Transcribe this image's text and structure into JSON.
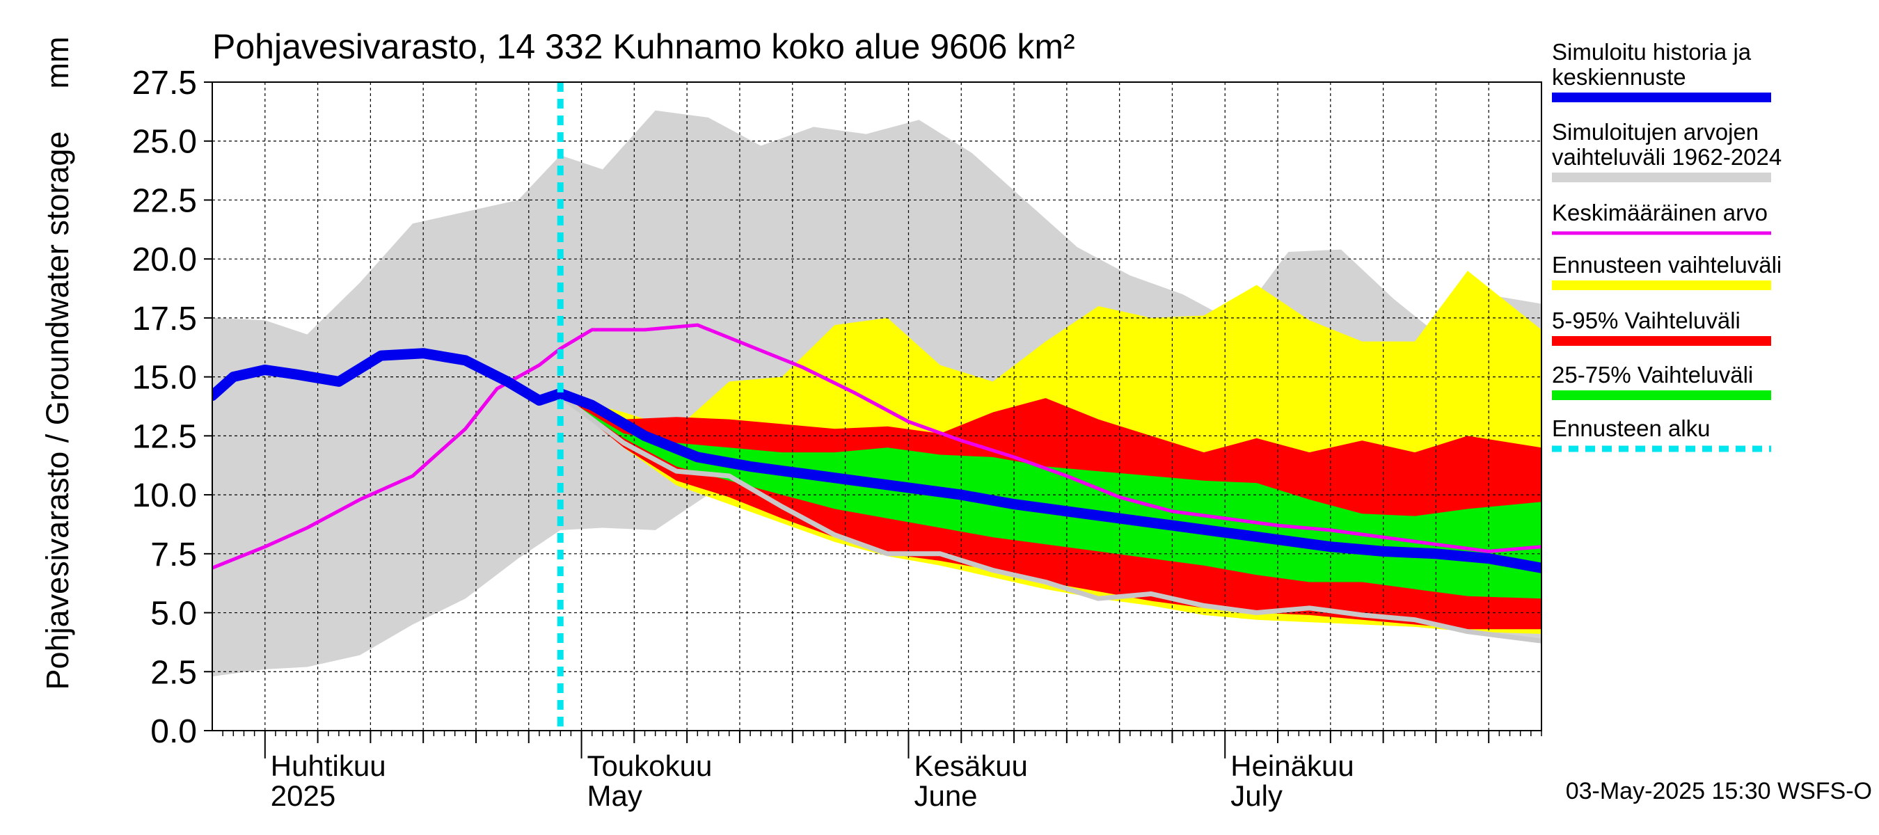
{
  "chart_data": {
    "type": "area",
    "title": "Pohjavesivarasto, 14 332 Kuhnamo koko alue 9606 km²",
    "ylabel": "Pohjavesivarasto / Groundwater storage",
    "yunit": "mm",
    "ylim": [
      0,
      27.5
    ],
    "yticks": [
      "0.0",
      "2.5",
      "5.0",
      "7.5",
      "10.0",
      "12.5",
      "15.0",
      "17.5",
      "20.0",
      "22.5",
      "25.0",
      "27.5"
    ],
    "xlim": [
      "2025-03-27",
      "2025-07-31"
    ],
    "month_labels": [
      {
        "date": "2025-04-01",
        "fi": "Huhtikuu",
        "en": "2025"
      },
      {
        "date": "2025-05-01",
        "fi": "Toukokuu",
        "en": "May"
      },
      {
        "date": "2025-06-01",
        "fi": "Kesäkuu",
        "en": "June"
      },
      {
        "date": "2025-07-01",
        "fi": "Heinäkuu",
        "en": "July"
      }
    ],
    "month_starts": [
      "2025-04-01",
      "2025-05-01",
      "2025-06-01",
      "2025-07-01"
    ],
    "forecast_start": "2025-04-29",
    "footer": "03-May-2025 15:30 WSFS-O",
    "grid": true,
    "legend_position": "right",
    "colors": {
      "history": "#0000ee",
      "sim_range": "#d3d3d3",
      "mean": "#ee00ee",
      "forecast_range": "#ffff00",
      "p5_95": "#ff0000",
      "p25_75": "#00ee00",
      "forecast_start": "#00e5ee",
      "grey_line": "#c8c8c8"
    },
    "series": [
      {
        "key": "sim_range",
        "name": "Simuloitujen arvojen vaihteluväli 1962-2024",
        "dates": [
          "2025-03-27",
          "2025-04-01",
          "2025-04-05",
          "2025-04-10",
          "2025-04-15",
          "2025-04-20",
          "2025-04-25",
          "2025-04-29",
          "2025-05-03",
          "2025-05-08",
          "2025-05-13",
          "2025-05-18",
          "2025-05-23",
          "2025-05-28",
          "2025-06-02",
          "2025-06-07",
          "2025-06-12",
          "2025-06-17",
          "2025-06-22",
          "2025-06-27",
          "2025-07-02",
          "2025-07-07",
          "2025-07-12",
          "2025-07-17",
          "2025-07-22",
          "2025-07-27",
          "2025-07-31"
        ],
        "lower": [
          2.3,
          2.6,
          2.7,
          3.2,
          4.5,
          5.6,
          7.3,
          8.5,
          8.6,
          8.5,
          10.0,
          11.0,
          10.5,
          9.5,
          8.0,
          7.4,
          7.3,
          7.0,
          6.5,
          5.9,
          5.2,
          5.0,
          4.8,
          4.6,
          4.3,
          4.1,
          3.9
        ],
        "upper": [
          17.5,
          17.4,
          16.8,
          19.0,
          21.5,
          22.0,
          22.5,
          24.4,
          23.8,
          26.3,
          26.0,
          24.8,
          25.6,
          25.3,
          25.9,
          24.5,
          22.5,
          20.5,
          19.3,
          18.5,
          17.3,
          20.3,
          20.4,
          18.3,
          16.5,
          18.4,
          18.1
        ]
      },
      {
        "key": "forecast_range",
        "name": "Ennusteen vaihteluväli",
        "dates": [
          "2025-04-29",
          "2025-05-05",
          "2025-05-10",
          "2025-05-15",
          "2025-05-20",
          "2025-05-25",
          "2025-05-30",
          "2025-06-04",
          "2025-06-09",
          "2025-06-14",
          "2025-06-19",
          "2025-06-24",
          "2025-06-29",
          "2025-07-04",
          "2025-07-09",
          "2025-07-14",
          "2025-07-19",
          "2025-07-24",
          "2025-07-31"
        ],
        "lower": [
          14.2,
          12.0,
          10.4,
          9.6,
          8.8,
          8.0,
          7.4,
          7.0,
          6.5,
          6.0,
          5.6,
          5.3,
          4.9,
          4.7,
          4.6,
          4.5,
          4.4,
          4.2,
          4.1
        ],
        "upper": [
          14.2,
          13.5,
          12.8,
          14.8,
          15.0,
          17.2,
          17.5,
          15.5,
          14.8,
          16.5,
          18.0,
          17.5,
          17.6,
          18.9,
          17.4,
          16.5,
          16.5,
          19.5,
          17.0
        ]
      },
      {
        "key": "p5_95",
        "name": "5-95% Vaihteluväli",
        "dates": [
          "2025-04-29",
          "2025-05-05",
          "2025-05-10",
          "2025-05-15",
          "2025-05-20",
          "2025-05-25",
          "2025-05-30",
          "2025-06-04",
          "2025-06-09",
          "2025-06-14",
          "2025-06-19",
          "2025-06-24",
          "2025-06-29",
          "2025-07-04",
          "2025-07-09",
          "2025-07-14",
          "2025-07-19",
          "2025-07-24",
          "2025-07-31"
        ],
        "lower": [
          14.2,
          12.0,
          10.6,
          9.9,
          9.0,
          8.2,
          7.5,
          7.2,
          6.8,
          6.3,
          5.9,
          5.5,
          5.2,
          5.0,
          4.9,
          4.7,
          4.5,
          4.3,
          4.3
        ],
        "upper": [
          14.2,
          13.2,
          13.3,
          13.2,
          13.0,
          12.8,
          12.9,
          12.6,
          13.5,
          14.1,
          13.2,
          12.5,
          11.8,
          12.4,
          11.8,
          12.3,
          11.8,
          12.5,
          12.0
        ]
      },
      {
        "key": "p25_75",
        "name": "25-75% Vaihteluväli",
        "dates": [
          "2025-04-29",
          "2025-05-05",
          "2025-05-10",
          "2025-05-15",
          "2025-05-20",
          "2025-05-25",
          "2025-05-30",
          "2025-06-04",
          "2025-06-09",
          "2025-06-14",
          "2025-06-19",
          "2025-06-24",
          "2025-06-29",
          "2025-07-04",
          "2025-07-09",
          "2025-07-14",
          "2025-07-19",
          "2025-07-24",
          "2025-07-31"
        ],
        "lower": [
          14.2,
          12.4,
          11.2,
          10.6,
          10.0,
          9.4,
          9.0,
          8.6,
          8.2,
          7.9,
          7.6,
          7.3,
          7.0,
          6.6,
          6.3,
          6.3,
          6.0,
          5.7,
          5.6
        ],
        "upper": [
          14.2,
          12.6,
          12.2,
          12.0,
          11.8,
          11.8,
          12.0,
          11.7,
          11.6,
          11.2,
          11.0,
          10.8,
          10.6,
          10.5,
          9.8,
          9.2,
          9.1,
          9.4,
          9.7
        ]
      },
      {
        "key": "grey_line",
        "name": "",
        "dates": [
          "2025-04-29",
          "2025-05-05",
          "2025-05-10",
          "2025-05-15",
          "2025-05-20",
          "2025-05-25",
          "2025-05-30",
          "2025-06-04",
          "2025-06-09",
          "2025-06-14",
          "2025-06-19",
          "2025-06-24",
          "2025-06-29",
          "2025-07-04",
          "2025-07-09",
          "2025-07-14",
          "2025-07-19",
          "2025-07-24",
          "2025-07-31"
        ],
        "values": [
          14.2,
          12.2,
          11.0,
          10.8,
          9.5,
          8.3,
          7.5,
          7.5,
          6.8,
          6.3,
          5.6,
          5.8,
          5.3,
          5.0,
          5.2,
          4.9,
          4.7,
          4.2,
          3.8
        ]
      },
      {
        "key": "mean",
        "name": "Keskimääräinen arvo",
        "dates": [
          "2025-03-27",
          "2025-04-01",
          "2025-04-05",
          "2025-04-10",
          "2025-04-15",
          "2025-04-20",
          "2025-04-23",
          "2025-04-27",
          "2025-04-29",
          "2025-05-02",
          "2025-05-07",
          "2025-05-12",
          "2025-05-17",
          "2025-05-22",
          "2025-05-27",
          "2025-06-01",
          "2025-06-06",
          "2025-06-11",
          "2025-06-16",
          "2025-06-21",
          "2025-06-26",
          "2025-07-01",
          "2025-07-06",
          "2025-07-11",
          "2025-07-16",
          "2025-07-21",
          "2025-07-26",
          "2025-07-31"
        ],
        "values": [
          6.9,
          7.8,
          8.6,
          9.8,
          10.8,
          12.8,
          14.5,
          15.5,
          16.2,
          17.0,
          17.0,
          17.2,
          16.3,
          15.4,
          14.3,
          13.1,
          12.3,
          11.6,
          10.8,
          9.9,
          9.3,
          9.0,
          8.7,
          8.5,
          8.2,
          7.9,
          7.6,
          7.8
        ]
      },
      {
        "key": "history",
        "name": "Simuloitu historia ja keskiennuste",
        "dates": [
          "2025-03-27",
          "2025-03-29",
          "2025-04-01",
          "2025-04-04",
          "2025-04-08",
          "2025-04-12",
          "2025-04-16",
          "2025-04-20",
          "2025-04-24",
          "2025-04-27",
          "2025-04-29",
          "2025-05-02",
          "2025-05-07",
          "2025-05-12",
          "2025-05-17",
          "2025-05-22",
          "2025-05-27",
          "2025-06-01",
          "2025-06-06",
          "2025-06-11",
          "2025-06-16",
          "2025-06-21",
          "2025-06-26",
          "2025-07-01",
          "2025-07-06",
          "2025-07-11",
          "2025-07-16",
          "2025-07-21",
          "2025-07-26",
          "2025-07-31"
        ],
        "values": [
          14.2,
          15.0,
          15.3,
          15.1,
          14.8,
          15.9,
          16.0,
          15.7,
          14.8,
          14.0,
          14.3,
          13.8,
          12.5,
          11.6,
          11.2,
          10.9,
          10.6,
          10.3,
          10.0,
          9.6,
          9.3,
          9.0,
          8.7,
          8.4,
          8.1,
          7.8,
          7.6,
          7.5,
          7.3,
          6.9
        ]
      }
    ]
  }
}
